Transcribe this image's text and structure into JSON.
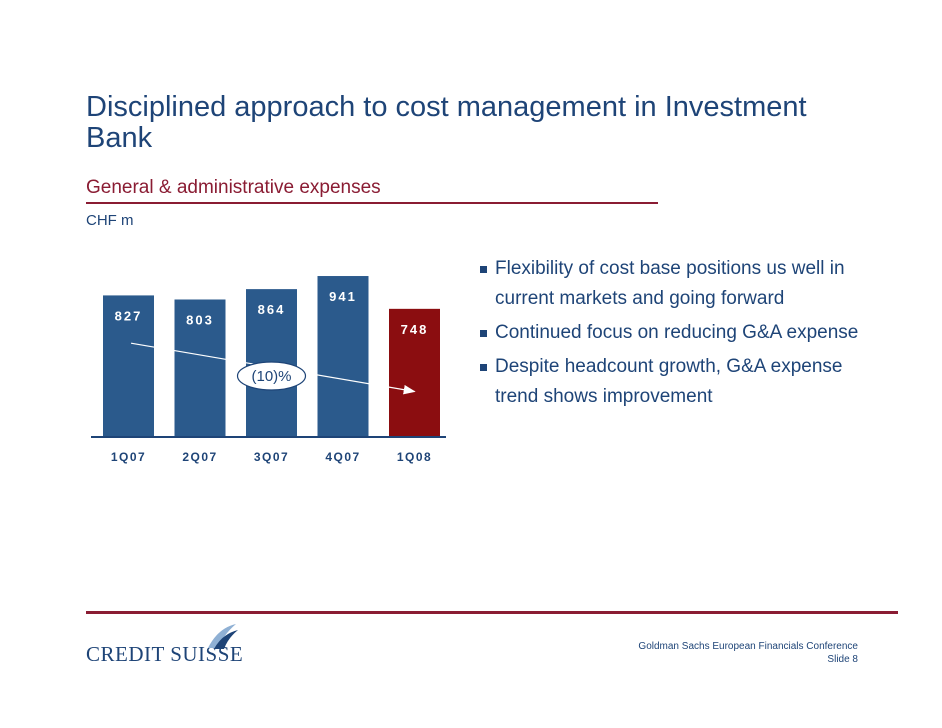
{
  "slide": {
    "title": "Disciplined approach to cost management in Investment Bank",
    "subtitle": "General & administrative expenses",
    "unit": "CHF m"
  },
  "chart_data": {
    "type": "bar",
    "categories": [
      "1Q07",
      "2Q07",
      "3Q07",
      "4Q07",
      "1Q08"
    ],
    "values": [
      827,
      803,
      864,
      941,
      748
    ],
    "title": "",
    "ylabel": "",
    "xlabel": "",
    "ylim": [
      0,
      1000
    ],
    "grid": false,
    "colors": [
      "#2b5a8c",
      "#2b5a8c",
      "#2b5a8c",
      "#2b5a8c",
      "#8b0d10"
    ],
    "annotations": [
      {
        "text": "(10)%",
        "type": "trend-arrow",
        "from_category": "1Q07",
        "to_category": "1Q08"
      }
    ]
  },
  "bullets": [
    "Flexibility of cost base positions us well in current markets and going forward",
    "Continued focus on reducing G&A expense",
    "Despite headcount growth, G&A expense trend shows improvement"
  ],
  "footer": {
    "logo_text": "CREDIT SUISSE",
    "conference": "Goldman Sachs European Financials Conference",
    "slide_number": "Slide 8"
  },
  "colors": {
    "title": "#1e4477",
    "accent": "#8a1c33",
    "bar": "#2b5a8c",
    "highlight_bar": "#8b0d10"
  }
}
